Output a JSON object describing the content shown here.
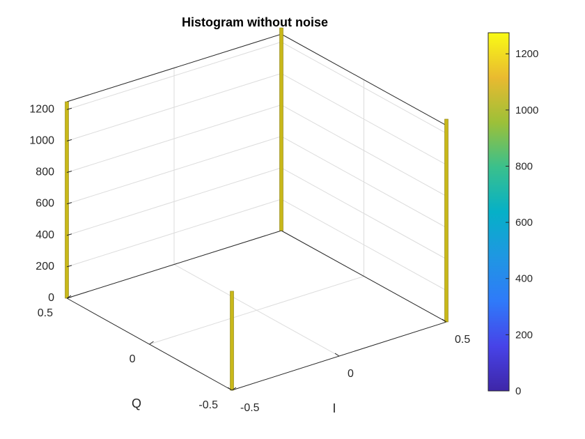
{
  "chart_data": {
    "type": "bar3",
    "title": "Histogram without noise",
    "xlabel": "I",
    "ylabel": "Q",
    "zlabel": "",
    "x_ticks": [
      "-0.5",
      "0",
      "0.5"
    ],
    "y_ticks": [
      "-0.5",
      "0",
      "0.5"
    ],
    "z_ticks": [
      "0",
      "200",
      "400",
      "600",
      "800",
      "1000",
      "1200"
    ],
    "xlim": [
      -0.5,
      0.5
    ],
    "ylim": [
      -0.5,
      0.5
    ],
    "zlim": [
      0,
      1250
    ],
    "grid": true,
    "bars": [
      {
        "I": -0.5,
        "Q": 0.5,
        "count": 1250
      },
      {
        "I": -0.5,
        "Q": -0.5,
        "count": 630
      },
      {
        "I": 0.5,
        "Q": 0.5,
        "count": 1290
      },
      {
        "I": 0.5,
        "Q": -0.5,
        "count": 1290
      }
    ],
    "colorbar": {
      "ticks": [
        "0",
        "200",
        "400",
        "600",
        "800",
        "1000",
        "1200"
      ],
      "range": [
        0,
        1275
      ],
      "colormap": "parula"
    },
    "bar_color": "#c8b81a"
  }
}
